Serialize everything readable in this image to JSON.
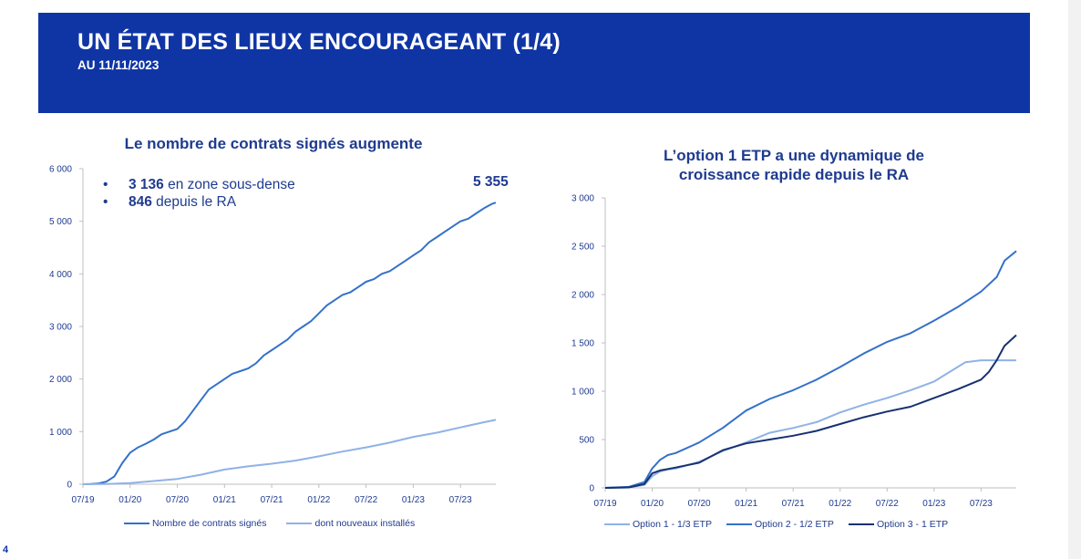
{
  "slide": {
    "title": "UN ÉTAT DES LIEUX ENCOURAGEANT (1/4)",
    "subtitle": "AU 11/11/2023",
    "page_number": "4",
    "colors": {
      "banner": "#0f35a5",
      "title_text": "#1f3b8f"
    }
  },
  "left_panel": {
    "title": "Le nombre de contrats signés augmente",
    "bullets": [
      {
        "bold": "3 136",
        "text": " en zone sous-dense"
      },
      {
        "bold": "846",
        "text": " depuis le RA"
      }
    ],
    "total_label": "5 355"
  },
  "right_panel": {
    "title_line1": "L’option 1 ETP a une dynamique de",
    "title_line2": "croissance rapide depuis le RA"
  },
  "chart_data": [
    {
      "type": "line",
      "x_ticks": [
        "07/19",
        "01/20",
        "07/20",
        "01/21",
        "07/21",
        "01/22",
        "07/22",
        "01/23",
        "07/23"
      ],
      "x_tick_months": [
        0,
        6,
        12,
        18,
        24,
        30,
        36,
        42,
        48
      ],
      "xlim": [
        0,
        52.5
      ],
      "ylim": [
        0,
        6000
      ],
      "y_ticks": [
        0,
        1000,
        2000,
        3000,
        4000,
        5000,
        6000
      ],
      "y_tick_labels": [
        "0",
        "1 000",
        "2 000",
        "3 000",
        "4 000",
        "5 000",
        "6 000"
      ],
      "grid": false,
      "legend_position": "bottom",
      "series": [
        {
          "name": "Nombre de contrats signés",
          "color": "#3471c9",
          "x": [
            0,
            1,
            2,
            3,
            4,
            5,
            6,
            7,
            8,
            9,
            10,
            11,
            12,
            13,
            14,
            15,
            16,
            17,
            18,
            19,
            20,
            21,
            22,
            23,
            24,
            25,
            26,
            27,
            28,
            29,
            30,
            31,
            32,
            33,
            34,
            35,
            36,
            37,
            38,
            39,
            40,
            41,
            42,
            43,
            44,
            45,
            46,
            47,
            48,
            49,
            50,
            51,
            52,
            52.5
          ],
          "values": [
            0,
            5,
            15,
            50,
            150,
            400,
            600,
            700,
            770,
            850,
            950,
            1000,
            1050,
            1200,
            1400,
            1600,
            1800,
            1900,
            2000,
            2100,
            2150,
            2200,
            2300,
            2450,
            2550,
            2650,
            2750,
            2900,
            3000,
            3100,
            3250,
            3400,
            3500,
            3600,
            3650,
            3750,
            3850,
            3900,
            4000,
            4050,
            4150,
            4250,
            4350,
            4450,
            4600,
            4700,
            4800,
            4900,
            5000,
            5050,
            5150,
            5250,
            5330,
            5355
          ]
        },
        {
          "name": "dont nouveaux installés",
          "color": "#8fb2e6",
          "x": [
            0,
            3,
            6,
            9,
            12,
            15,
            18,
            21,
            24,
            27,
            30,
            33,
            36,
            39,
            42,
            45,
            48,
            51,
            52.5
          ],
          "values": [
            0,
            5,
            20,
            60,
            100,
            180,
            280,
            340,
            390,
            450,
            530,
            620,
            700,
            790,
            900,
            980,
            1080,
            1180,
            1225
          ]
        }
      ]
    },
    {
      "type": "line",
      "x_ticks": [
        "07/19",
        "01/20",
        "07/20",
        "01/21",
        "07/21",
        "01/22",
        "07/22",
        "01/23",
        "07/23"
      ],
      "x_tick_months": [
        0,
        6,
        12,
        18,
        24,
        30,
        36,
        42,
        48
      ],
      "xlim": [
        0,
        52.5
      ],
      "ylim": [
        0,
        3000
      ],
      "y_ticks": [
        0,
        500,
        1000,
        1500,
        2000,
        2500,
        3000
      ],
      "y_tick_labels": [
        "0",
        "500",
        "1 000",
        "1 500",
        "2 000",
        "2 500",
        "3 000"
      ],
      "grid": false,
      "legend_position": "bottom",
      "series": [
        {
          "name": "Option 1 - 1/3 ETP",
          "color": "#8fb2e6",
          "x": [
            0,
            3,
            5,
            6,
            7,
            8,
            9,
            12,
            15,
            18,
            21,
            24,
            27,
            30,
            33,
            36,
            39,
            42,
            45,
            46,
            48,
            50,
            52.5
          ],
          "values": [
            0,
            5,
            30,
            120,
            170,
            190,
            200,
            270,
            380,
            470,
            570,
            620,
            680,
            780,
            860,
            930,
            1010,
            1100,
            1250,
            1300,
            1320,
            1320,
            1320
          ]
        },
        {
          "name": "Option 2 - 1/2 ETP",
          "color": "#3471c9",
          "x": [
            0,
            3,
            5,
            6,
            7,
            8,
            9,
            12,
            15,
            18,
            21,
            24,
            27,
            30,
            33,
            36,
            39,
            42,
            45,
            48,
            50,
            51,
            52.5
          ],
          "values": [
            0,
            10,
            60,
            200,
            290,
            340,
            360,
            470,
            620,
            800,
            920,
            1010,
            1120,
            1250,
            1390,
            1510,
            1600,
            1730,
            1870,
            2030,
            2180,
            2350,
            2450
          ]
        },
        {
          "name": "Option 3 - 1 ETP",
          "color": "#17316f",
          "x": [
            0,
            3,
            5,
            6,
            7,
            8,
            9,
            12,
            15,
            18,
            21,
            24,
            27,
            30,
            33,
            36,
            39,
            42,
            45,
            48,
            49,
            50,
            51,
            52.5
          ],
          "values": [
            0,
            5,
            40,
            150,
            180,
            195,
            210,
            260,
            390,
            460,
            500,
            540,
            590,
            660,
            730,
            790,
            840,
            930,
            1020,
            1120,
            1200,
            1320,
            1470,
            1580
          ]
        }
      ]
    }
  ]
}
